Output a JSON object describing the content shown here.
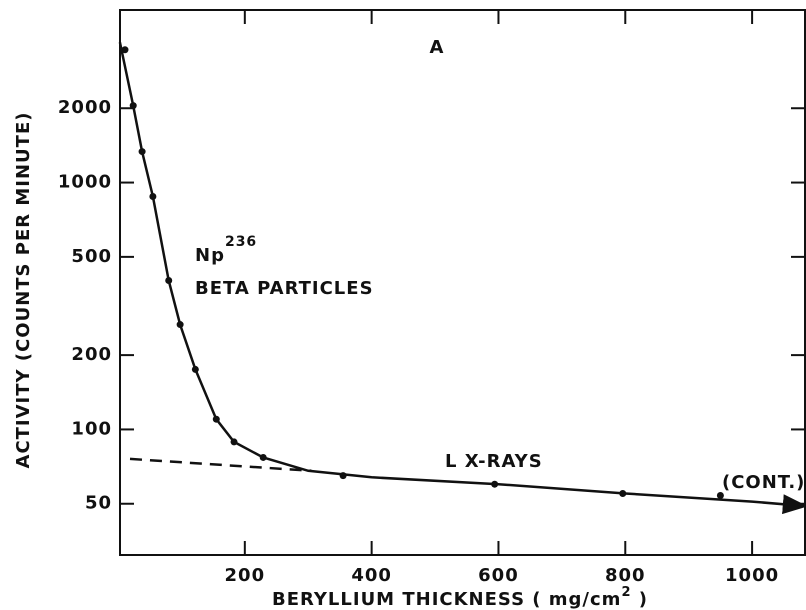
{
  "chart_data": {
    "type": "line",
    "log_y": true,
    "color": "#111111",
    "xlim": [
      0,
      1085
    ],
    "ylim": [
      31,
      5000
    ],
    "xticks": [
      200,
      400,
      600,
      800,
      1000
    ],
    "yticks": [
      50,
      100,
      200,
      500,
      1000,
      2000
    ],
    "xlabel": {
      "text": "BERYLLIUM  THICKNESS  ( mg/cm",
      "sup": "2",
      "end": " )"
    },
    "ylabel": "ACTIVITY (COUNTS PER MINUTE)",
    "annotations": {
      "panel": "A",
      "isotope": {
        "text": "Np",
        "sup": "236"
      },
      "beta": "BETA  PARTICLES",
      "xrays": "L  X-RAYS",
      "cont": "(CONT.)"
    },
    "series": [
      {
        "style": "points",
        "x": [
          11,
          24,
          38,
          55,
          80,
          98,
          122,
          155,
          183,
          229,
          355,
          594,
          796,
          950
        ],
        "values": [
          3450,
          2050,
          1335,
          878,
          401,
          266,
          175,
          110,
          89,
          77,
          65,
          60,
          55,
          54
        ]
      },
      {
        "style": "solid",
        "x": [
          3,
          24,
          38,
          55,
          80,
          98,
          122,
          155,
          183,
          229,
          300,
          400,
          600,
          800,
          1000,
          1080
        ],
        "values": [
          3700,
          2050,
          1335,
          878,
          401,
          266,
          175,
          110,
          89,
          77,
          68,
          64,
          60,
          55,
          51,
          49
        ]
      },
      {
        "style": "dashed",
        "x": [
          19,
          305
        ],
        "values": [
          76,
          68
        ]
      }
    ]
  }
}
